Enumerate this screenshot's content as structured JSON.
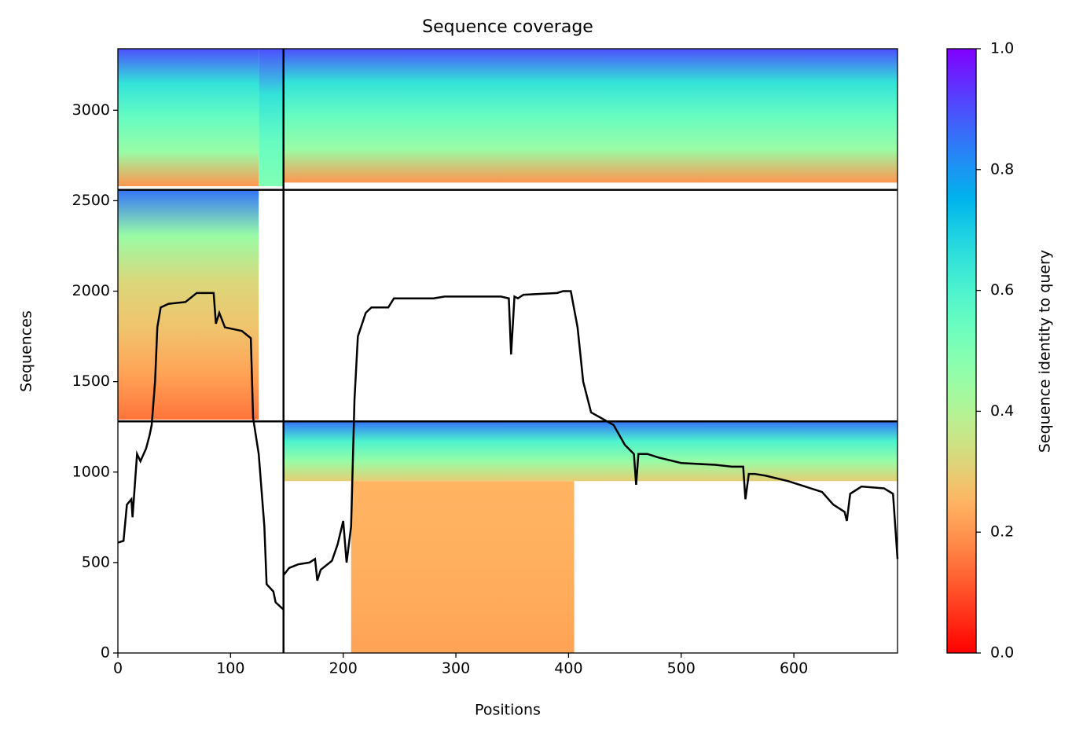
{
  "chart_data": {
    "type": "coverage",
    "title": "Sequence coverage",
    "xlabel": "Positions",
    "ylabel": "Sequences",
    "xlim": [
      0,
      692
    ],
    "ylim": [
      0,
      3340
    ],
    "xticks": [
      0,
      100,
      200,
      300,
      400,
      500,
      600
    ],
    "yticks": [
      0,
      500,
      1000,
      1500,
      2000,
      2500,
      3000
    ],
    "colormap": "rainbow_r",
    "colorbar": {
      "label": "Sequence identity to query",
      "lim": [
        0,
        1
      ],
      "ticks": [
        {
          "value": 0,
          "label": "0.0"
        },
        0.2,
        0.4,
        0.6,
        0.8,
        {
          "value": 1,
          "label": "1.0"
        }
      ]
    },
    "dividers": {
      "x": [
        147
      ],
      "y": [
        1280,
        2560
      ]
    },
    "blocks": [
      {
        "x": [
          0,
          125
        ],
        "y": [
          2580,
          3340
        ],
        "identity": [
          0.2,
          0.45,
          0.55,
          0.65,
          0.9
        ]
      },
      {
        "x": [
          125,
          147
        ],
        "y": [
          2580,
          3340
        ],
        "identity": [
          0.5,
          0.55,
          0.65,
          0.9
        ]
      },
      {
        "x": [
          147,
          692
        ],
        "y": [
          2600,
          3340
        ],
        "identity": [
          0.2,
          0.45,
          0.55,
          0.65,
          0.9
        ]
      },
      {
        "x": [
          0,
          125
        ],
        "y": [
          1290,
          2560
        ],
        "identity": [
          0.15,
          0.22,
          0.28,
          0.32,
          0.45,
          0.85
        ]
      },
      {
        "x": [
          147,
          692
        ],
        "y": [
          950,
          1280
        ],
        "identity": [
          0.3,
          0.45,
          0.6,
          0.85
        ]
      },
      {
        "x": [
          207,
          405
        ],
        "y": [
          0,
          950
        ],
        "identity": [
          0.22,
          0.24,
          0.25
        ]
      }
    ],
    "coverage": {
      "color": "#000000",
      "x": [
        0,
        5,
        8,
        12,
        13,
        17,
        20,
        25,
        28,
        30,
        33,
        35,
        38,
        45,
        60,
        70,
        85,
        87,
        90,
        95,
        110,
        118,
        120,
        125,
        130,
        132,
        138,
        140,
        147,
        147,
        152,
        160,
        170,
        175,
        177,
        180,
        190,
        195,
        200,
        203,
        207,
        210,
        213,
        220,
        225,
        240,
        245,
        280,
        290,
        340,
        347,
        349,
        352,
        355,
        360,
        390,
        395,
        402,
        408,
        413,
        420,
        440,
        450,
        458,
        460,
        462,
        470,
        480,
        500,
        530,
        545,
        555,
        557,
        560,
        565,
        575,
        595,
        610,
        625,
        635,
        645,
        647,
        650,
        660,
        680,
        688,
        692
      ],
      "y": [
        610,
        620,
        820,
        850,
        750,
        1100,
        1060,
        1130,
        1200,
        1260,
        1500,
        1800,
        1910,
        1930,
        1940,
        1990,
        1990,
        1820,
        1880,
        1800,
        1780,
        1740,
        1300,
        1100,
        700,
        380,
        340,
        280,
        240,
        430,
        470,
        490,
        500,
        520,
        400,
        460,
        510,
        600,
        730,
        500,
        700,
        1400,
        1750,
        1880,
        1910,
        1910,
        1960,
        1960,
        1970,
        1970,
        1960,
        1650,
        1970,
        1960,
        1980,
        1990,
        2000,
        2000,
        1800,
        1500,
        1330,
        1260,
        1150,
        1100,
        930,
        1100,
        1100,
        1080,
        1050,
        1040,
        1030,
        1030,
        850,
        990,
        990,
        980,
        950,
        920,
        890,
        820,
        780,
        730,
        880,
        920,
        910,
        880,
        520
      ]
    }
  }
}
